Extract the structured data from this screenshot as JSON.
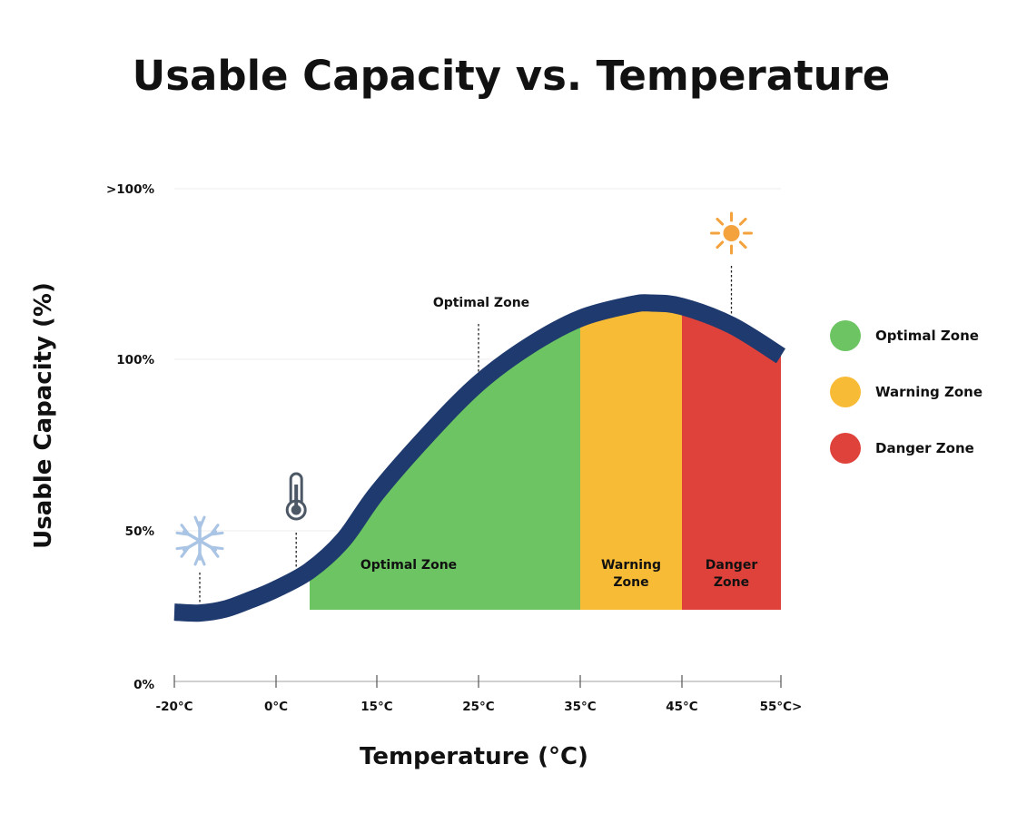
{
  "chart_data": {
    "type": "area",
    "title": "Usable Capacity vs. Temperature",
    "xlabel": "Temperature (°C)",
    "ylabel": "Usable Capacity (%)",
    "x_ticks": [
      {
        "value": -20,
        "label": "-20°C"
      },
      {
        "value": 0,
        "label": "0°C"
      },
      {
        "value": 15,
        "label": "15°C"
      },
      {
        "value": 25,
        "label": "25°C"
      },
      {
        "value": 35,
        "label": "35°C"
      },
      {
        "value": 45,
        "label": "45°C"
      },
      {
        "value": 55,
        "label": "55°C>"
      }
    ],
    "y_ticks": [
      {
        "value": 0,
        "label": "0%"
      },
      {
        "value": 50,
        "label": "50%"
      },
      {
        "value": 100,
        "label": "100%"
      },
      {
        "value": 150,
        "label": ">100%"
      }
    ],
    "ylim": [
      0,
      150
    ],
    "grid": "horizontal",
    "series": [
      {
        "name": "",
        "color": "#1f3a6e",
        "points": [
          {
            "x": -20,
            "y": 23.5
          },
          {
            "x": -15,
            "y": 23.2
          },
          {
            "x": -10,
            "y": 24.5
          },
          {
            "x": -5,
            "y": 27.5
          },
          {
            "x": 0,
            "y": 31
          },
          {
            "x": 5,
            "y": 37
          },
          {
            "x": 10,
            "y": 47
          },
          {
            "x": 15,
            "y": 61
          },
          {
            "x": 20,
            "y": 78
          },
          {
            "x": 25,
            "y": 93
          },
          {
            "x": 30,
            "y": 104
          },
          {
            "x": 35,
            "y": 112
          },
          {
            "x": 40,
            "y": 116
          },
          {
            "x": 42,
            "y": 116.5
          },
          {
            "x": 45,
            "y": 115.5
          },
          {
            "x": 50,
            "y": 110
          },
          {
            "x": 55,
            "y": 101
          }
        ]
      }
    ],
    "zones": [
      {
        "name": "Optimal Zone",
        "label": "Optimal Zone",
        "x_start": 5,
        "x_end": 35,
        "color": "#6cc562"
      },
      {
        "name": "Warning Zone",
        "label": "Warning Zone",
        "x_start": 35,
        "x_end": 45,
        "color": "#f8bb36"
      },
      {
        "name": "Danger Zone",
        "label": "Danger Zone",
        "x_start": 45,
        "x_end": 55,
        "color": "#de423b"
      }
    ],
    "annotations": [
      {
        "name": "optimal-zone-callout",
        "text": "Optimal Zone",
        "x": 25,
        "icon": ""
      },
      {
        "name": "snowflake-marker",
        "text": "",
        "x": -15,
        "icon": "snowflake-icon"
      },
      {
        "name": "thermometer-marker",
        "text": "",
        "x": 3,
        "icon": "thermometer-icon"
      },
      {
        "name": "sun-marker",
        "text": "",
        "x": 50,
        "icon": "sun-icon"
      }
    ],
    "legend": {
      "position": "right",
      "items": [
        {
          "label": "Optimal Zone",
          "color": "#6cc562"
        },
        {
          "label": "Warning Zone",
          "color": "#f8bb36"
        },
        {
          "label": "Danger Zone",
          "color": "#de423b"
        }
      ]
    }
  }
}
